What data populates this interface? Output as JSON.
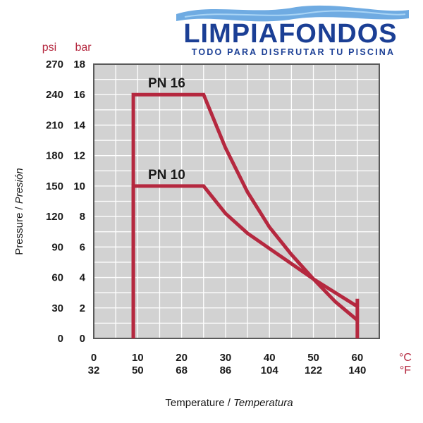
{
  "brand": {
    "name": "LIMPIAFONDOS",
    "tagline": "TODO PARA DISFRUTAR TU PISCINA"
  },
  "chart_data": {
    "type": "line",
    "xlabel_main": "Temperature / ",
    "xlabel_italic": "Temperatura",
    "ylabel_main": "Pressure / ",
    "ylabel_italic": "Presión",
    "x_unit_primary": "°C",
    "x_unit_secondary": "°F",
    "y_unit_primary": "bar",
    "y_unit_secondary": "psi",
    "xlim": [
      0,
      65
    ],
    "ylim": [
      0,
      18
    ],
    "grid": true,
    "x_ticks_c": [
      "0",
      "10",
      "20",
      "30",
      "40",
      "50",
      "60"
    ],
    "x_ticks_f": [
      "32",
      "50",
      "68",
      "86",
      "104",
      "122",
      "140"
    ],
    "y_ticks_bar": [
      "0",
      "2",
      "4",
      "6",
      "8",
      "10",
      "12",
      "14",
      "16",
      "18"
    ],
    "y_ticks_psi": [
      "0",
      "30",
      "60",
      "90",
      "120",
      "150",
      "180",
      "210",
      "240",
      "270"
    ],
    "series": [
      {
        "name": "PN 16",
        "points": [
          [
            9,
            0
          ],
          [
            9,
            16
          ],
          [
            25,
            16
          ],
          [
            30,
            12.5
          ],
          [
            35,
            9.6
          ],
          [
            40,
            7.3
          ],
          [
            45,
            5.5
          ],
          [
            50,
            3.9
          ],
          [
            55,
            2.4
          ],
          [
            60,
            1.2
          ]
        ]
      },
      {
        "name": "PN 10",
        "points": [
          [
            9,
            0
          ],
          [
            9,
            10
          ],
          [
            25,
            10
          ],
          [
            30,
            8.2
          ],
          [
            35,
            6.9
          ],
          [
            40,
            5.9
          ],
          [
            45,
            4.9
          ],
          [
            50,
            3.9
          ],
          [
            55,
            3.0
          ],
          [
            60,
            2.1
          ]
        ]
      }
    ],
    "end_segment": {
      "x": 60,
      "y_from": 0,
      "y_to": 2.6
    },
    "colors": {
      "line": "#b5283f",
      "plot_bg": "#d2d2d2",
      "grid": "#ffffff",
      "frame": "#5a5a5a",
      "unit_labels": "#b5283f"
    }
  }
}
